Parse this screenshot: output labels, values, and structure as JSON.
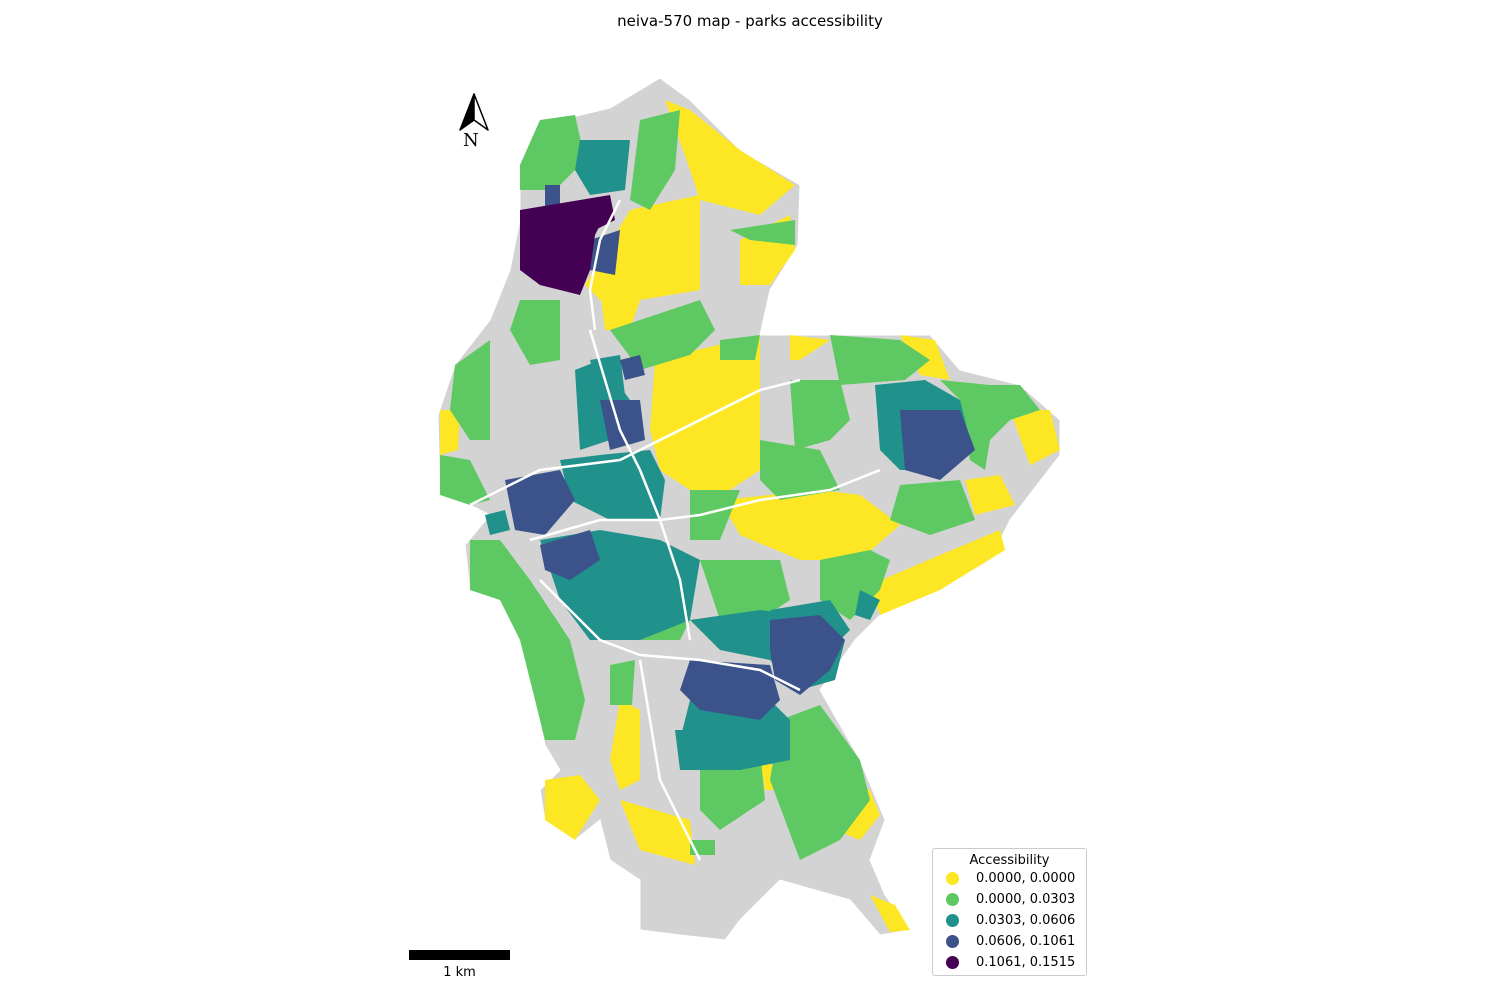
{
  "title": "neiva-570 map - parks accessibility",
  "north_label": "N",
  "scale_label": "1 km",
  "legend": {
    "title": "Accessibility",
    "items": [
      {
        "label": "0.0000, 0.0000",
        "color": "#fde725"
      },
      {
        "label": "0.0000, 0.0303",
        "color": "#5ec962"
      },
      {
        "label": "0.0303, 0.0606",
        "color": "#21918c"
      },
      {
        "label": "0.0606, 0.1061",
        "color": "#3b528b"
      },
      {
        "label": "0.1061, 0.1515",
        "color": "#440154"
      }
    ]
  },
  "no_data_color": "#d3d3d3"
}
